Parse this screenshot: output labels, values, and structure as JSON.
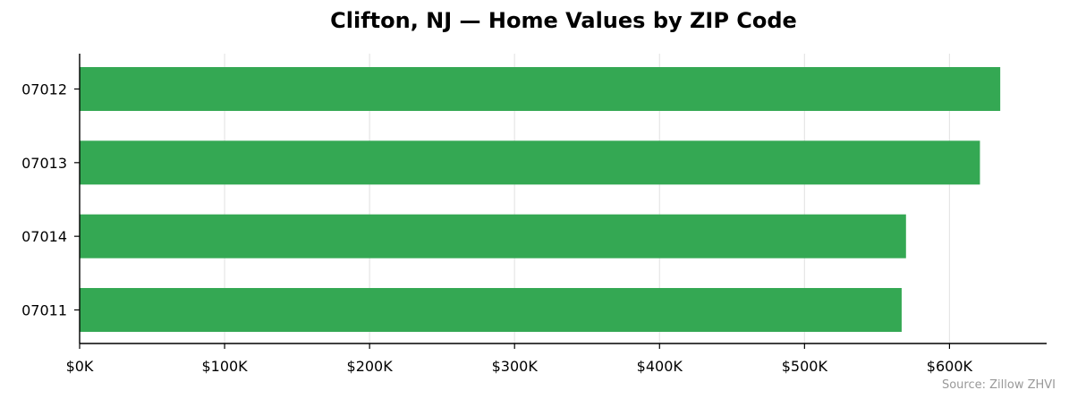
{
  "chart_data": {
    "type": "bar",
    "orientation": "horizontal",
    "title": "Clifton, NJ — Home Values by ZIP Code",
    "xlabel": "",
    "ylabel": "",
    "categories": [
      "07012",
      "07013",
      "07014",
      "07011"
    ],
    "values": [
      635000,
      621000,
      570000,
      567000
    ],
    "xlim": [
      0,
      667000
    ],
    "x_ticks": [
      0,
      100000,
      200000,
      300000,
      400000,
      500000,
      600000
    ],
    "x_tick_labels": [
      "$0K",
      "$100K",
      "$200K",
      "$300K",
      "$400K",
      "$500K",
      "$600K"
    ],
    "grid": "vertical",
    "bar_color": "#34a853",
    "source": "Source: Zillow ZHVI"
  }
}
